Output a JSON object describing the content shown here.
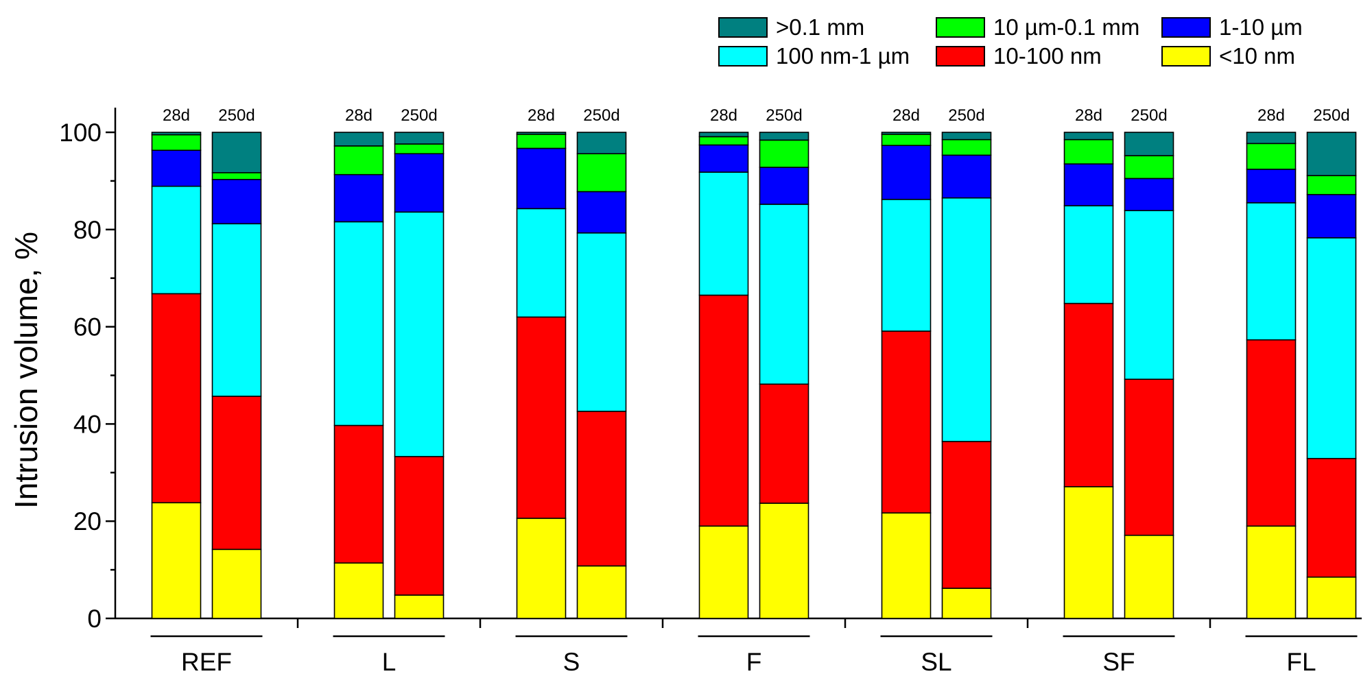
{
  "chart_data": {
    "type": "bar",
    "stacked": true,
    "ylabel": "Intrusion volume, %",
    "ylim": [
      0,
      100
    ],
    "yticks": [
      0,
      20,
      40,
      60,
      80,
      100
    ],
    "groups": [
      "REF",
      "L",
      "S",
      "F",
      "SL",
      "SF",
      "FL"
    ],
    "bar_labels": [
      "28d",
      "250d"
    ],
    "series": [
      {
        "name": "<10 nm",
        "color": "#ffff00",
        "values": [
          [
            23.8,
            14.2
          ],
          [
            11.4,
            4.8
          ],
          [
            20.6,
            10.8
          ],
          [
            19.0,
            23.7
          ],
          [
            21.7,
            6.2
          ],
          [
            27.1,
            17.1
          ],
          [
            19.0,
            8.5
          ]
        ]
      },
      {
        "name": "10-100 nm",
        "color": "#ff0000",
        "values": [
          [
            43.0,
            31.5
          ],
          [
            28.3,
            28.5
          ],
          [
            41.4,
            31.8
          ],
          [
            47.5,
            24.5
          ],
          [
            37.4,
            30.2
          ],
          [
            37.7,
            32.1
          ],
          [
            38.3,
            24.4
          ]
        ]
      },
      {
        "name": "100 nm-1 µm",
        "color": "#00ffff",
        "values": [
          [
            22.1,
            35.5
          ],
          [
            41.9,
            50.3
          ],
          [
            22.3,
            36.7
          ],
          [
            25.3,
            37.0
          ],
          [
            27.1,
            50.1
          ],
          [
            20.1,
            34.7
          ],
          [
            28.2,
            45.4
          ]
        ]
      },
      {
        "name": "1-10 µm",
        "color": "#0000ff",
        "values": [
          [
            7.4,
            9.1
          ],
          [
            9.7,
            12.0
          ],
          [
            12.4,
            8.5
          ],
          [
            5.6,
            7.6
          ],
          [
            11.1,
            8.8
          ],
          [
            8.6,
            6.6
          ],
          [
            6.9,
            8.9
          ]
        ]
      },
      {
        "name": "10 µm-0.1 mm",
        "color": "#00ff00",
        "values": [
          [
            3.2,
            1.4
          ],
          [
            5.9,
            2.0
          ],
          [
            2.9,
            7.8
          ],
          [
            1.7,
            5.6
          ],
          [
            2.3,
            3.2
          ],
          [
            5.0,
            4.7
          ],
          [
            5.3,
            3.9
          ]
        ]
      },
      {
        "name": ">0.1 mm",
        "color": "#008080",
        "values": [
          [
            0.5,
            8.3
          ],
          [
            2.8,
            2.4
          ],
          [
            0.4,
            4.4
          ],
          [
            0.9,
            1.6
          ],
          [
            0.4,
            1.5
          ],
          [
            1.5,
            4.8
          ],
          [
            2.3,
            8.9
          ]
        ]
      }
    ],
    "legend_order": [
      ">0.1 mm",
      "10 µm-0.1 mm",
      "1-10 µm",
      "100 nm-1 µm",
      "10-100 nm",
      "<10 nm"
    ],
    "legend_position": "top-right",
    "grid": false
  }
}
